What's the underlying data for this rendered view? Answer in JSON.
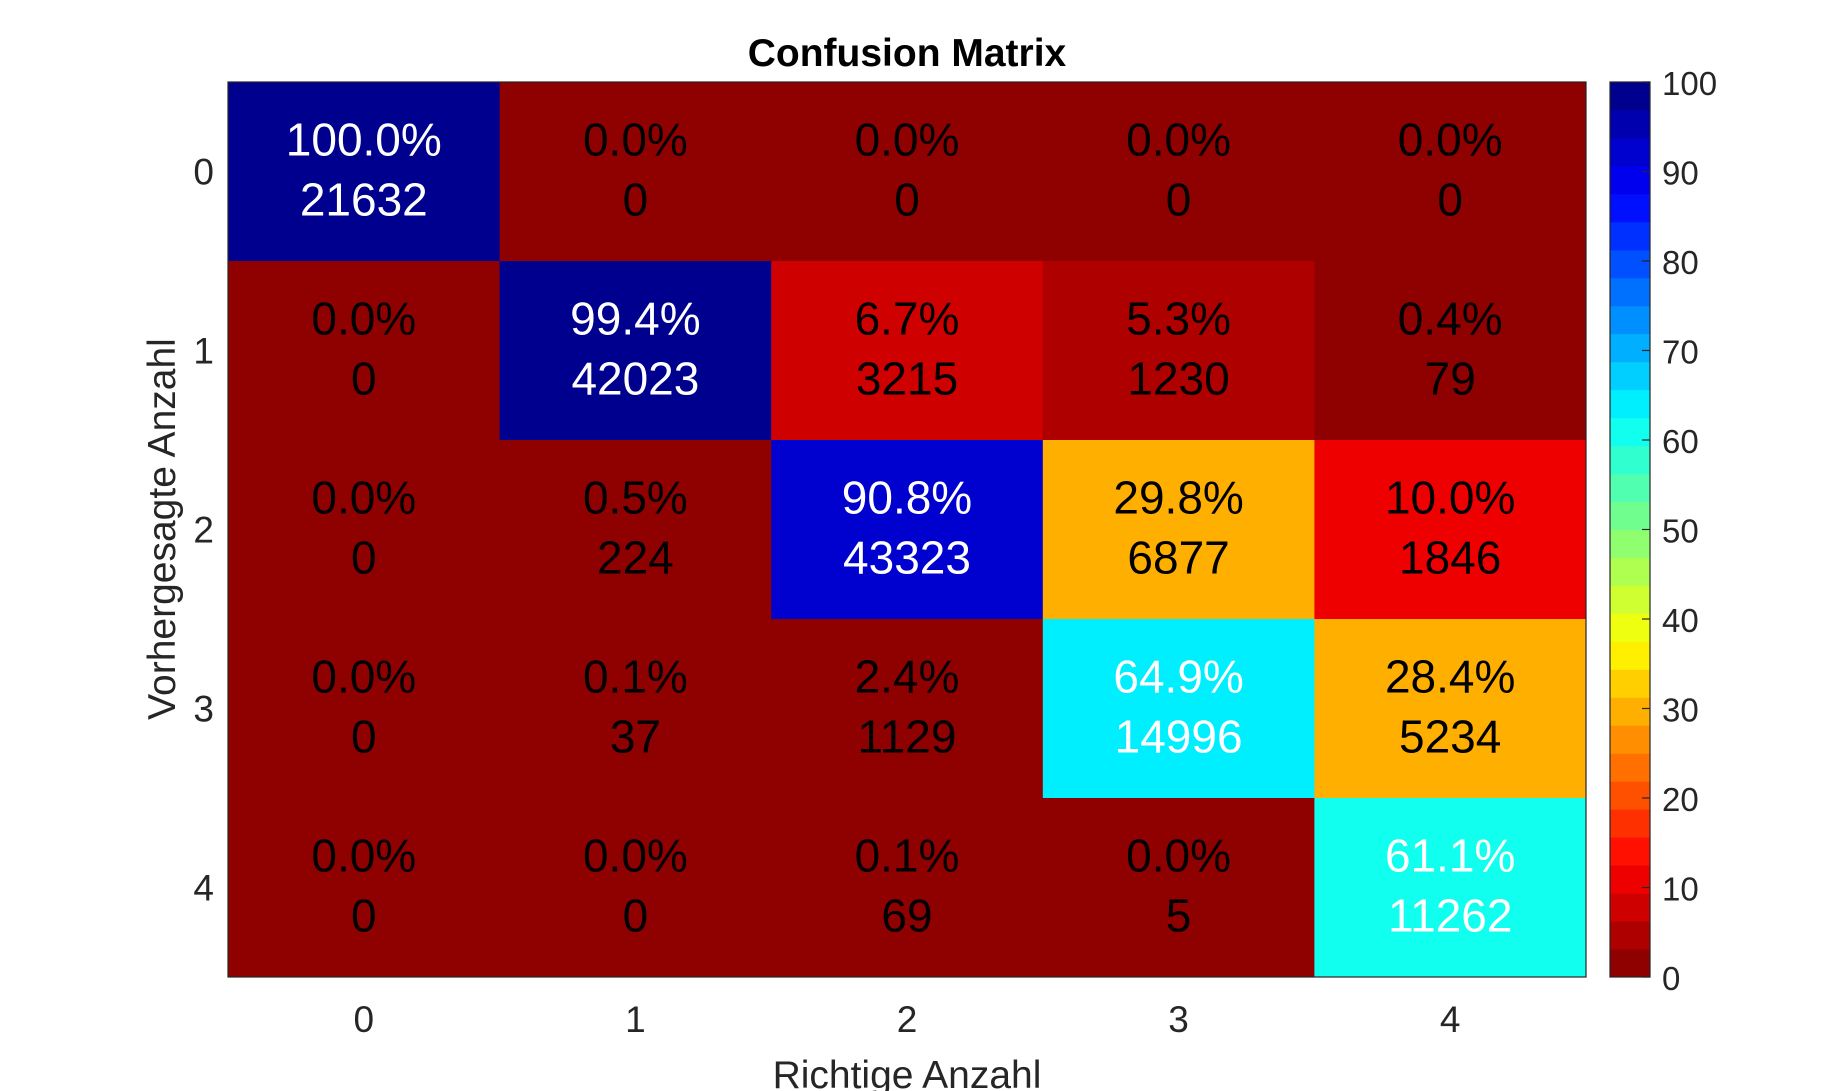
{
  "chart_data": {
    "type": "heatmap",
    "title": "Confusion Matrix",
    "xlabel": "Richtige Anzahl",
    "ylabel": "Vorhergesagte Anzahl",
    "x_categories": [
      "0",
      "1",
      "2",
      "3",
      "4"
    ],
    "y_categories": [
      "0",
      "1",
      "2",
      "3",
      "4"
    ],
    "percent_labels": [
      [
        "100.0%",
        "0.0%",
        "0.0%",
        "0.0%",
        "0.0%"
      ],
      [
        "0.0%",
        "99.4%",
        "6.7%",
        "5.3%",
        "0.4%"
      ],
      [
        "0.0%",
        "0.5%",
        "90.8%",
        "29.8%",
        "10.0%"
      ],
      [
        "0.0%",
        "0.1%",
        "2.4%",
        "64.9%",
        "28.4%"
      ],
      [
        "0.0%",
        "0.0%",
        "0.1%",
        "0.0%",
        "61.1%"
      ]
    ],
    "percent_values": [
      [
        100.0,
        0.0,
        0.0,
        0.0,
        0.0
      ],
      [
        0.0,
        99.4,
        6.7,
        5.3,
        0.4
      ],
      [
        0.0,
        0.5,
        90.8,
        29.8,
        10.0
      ],
      [
        0.0,
        0.1,
        2.4,
        64.9,
        28.4
      ],
      [
        0.0,
        0.0,
        0.1,
        0.0,
        61.1
      ]
    ],
    "counts": [
      [
        "21632",
        "0",
        "0",
        "0",
        "0"
      ],
      [
        "0",
        "42023",
        "3215",
        "1230",
        "79"
      ],
      [
        "0",
        "224",
        "43323",
        "6877",
        "1846"
      ],
      [
        "0",
        "37",
        "1129",
        "14996",
        "5234"
      ],
      [
        "0",
        "0",
        "69",
        "5",
        "11262"
      ]
    ],
    "colorbar": {
      "range": [
        0,
        100
      ],
      "ticks": [
        "0",
        "10",
        "20",
        "30",
        "40",
        "50",
        "60",
        "70",
        "80",
        "90",
        "100"
      ],
      "colormap": "jet-reversed"
    },
    "grid": false,
    "legend": "none"
  }
}
